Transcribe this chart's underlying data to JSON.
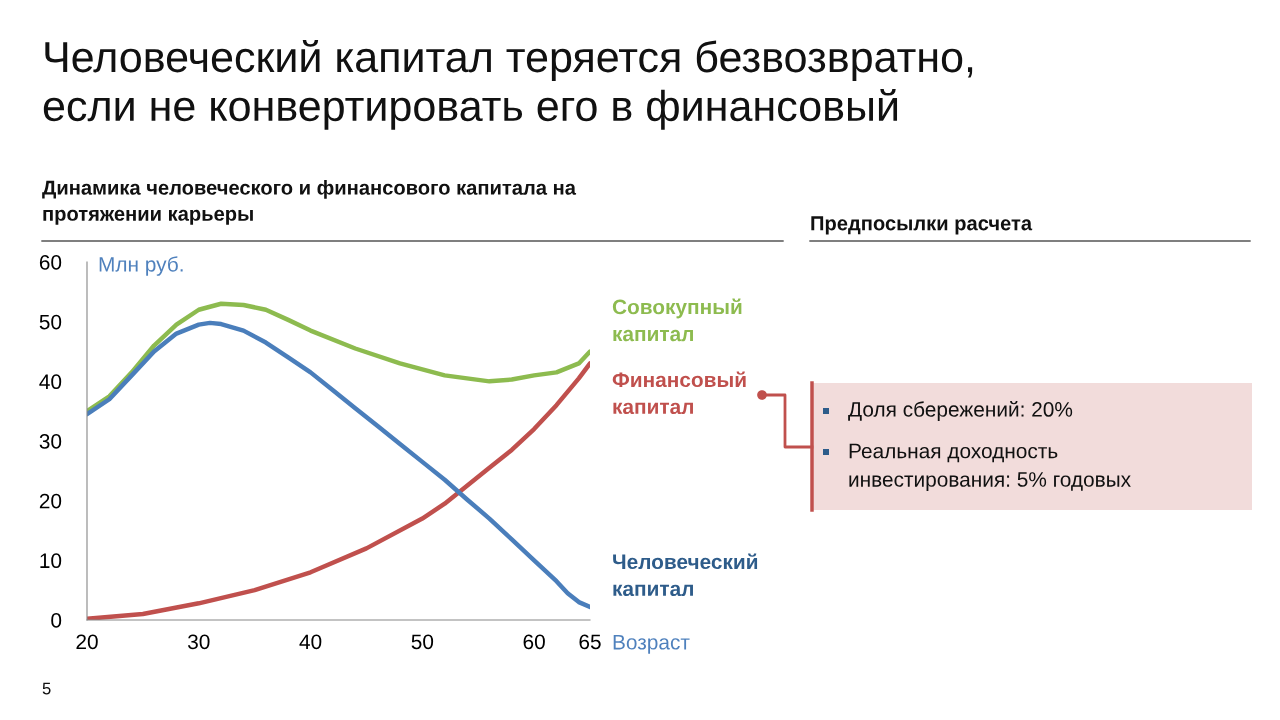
{
  "chart_data": {
    "type": "line",
    "title": "Человеческий капитал теряется безвозвратно,\nесли не конвертировать его в финансовый",
    "subtitle": "Динамика человеческого и финансового капитала на\nпротяжении карьеры",
    "ylabel": "Млн руб.",
    "xlabel": "Возраст",
    "xlim": [
      20,
      65
    ],
    "xticks": [
      20,
      30,
      40,
      50,
      60,
      65
    ],
    "ylim": [
      0,
      60
    ],
    "yticks": [
      0,
      10,
      20,
      30,
      40,
      50,
      60
    ],
    "grid": false,
    "legend": "right",
    "marker": "none",
    "line_style": "solid",
    "series": [
      {
        "name": "Совокупный\nкапитал",
        "color": "#8dbb4f",
        "x": [
          20,
          22,
          24,
          26,
          28,
          30,
          32,
          34,
          36,
          38,
          40,
          44,
          48,
          50,
          52,
          54,
          56,
          58,
          60,
          62,
          64,
          65
        ],
        "values": [
          35,
          37.5,
          41.5,
          46,
          49.5,
          52,
          53,
          52.8,
          52,
          50.3,
          48.5,
          45.5,
          43,
          42,
          41,
          40.5,
          40,
          40.3,
          41,
          41.5,
          43,
          45
        ]
      },
      {
        "name": "Финансовый\nкапитал",
        "color": "#c0504d",
        "x": [
          20,
          25,
          30,
          35,
          40,
          45,
          50,
          52,
          54,
          56,
          58,
          60,
          62,
          64,
          65
        ],
        "values": [
          0.2,
          1,
          2.8,
          5,
          8,
          12,
          17,
          19.5,
          22.5,
          25.5,
          28.5,
          32,
          36,
          40.5,
          43
        ]
      },
      {
        "name": "Человеческий\nкапитал",
        "color": "#4a7ebb",
        "x": [
          20,
          22,
          24,
          26,
          28,
          30,
          31,
          32,
          34,
          36,
          38,
          40,
          42,
          44,
          46,
          48,
          50,
          52,
          54,
          56,
          58,
          60,
          62,
          63,
          64,
          65
        ],
        "values": [
          34.5,
          37,
          41,
          45,
          48,
          49.5,
          49.8,
          49.6,
          48.5,
          46.5,
          44,
          41.5,
          38.5,
          35.5,
          32.5,
          29.5,
          26.5,
          23.5,
          20.2,
          17,
          13.5,
          10,
          6.5,
          4.5,
          3,
          2.2
        ]
      }
    ],
    "annotations": [
      "Предпосылки расчета",
      "Доля сбережений: 20%",
      "Реальная доходность\nинвестирования: 5% годовых",
      "5"
    ]
  }
}
